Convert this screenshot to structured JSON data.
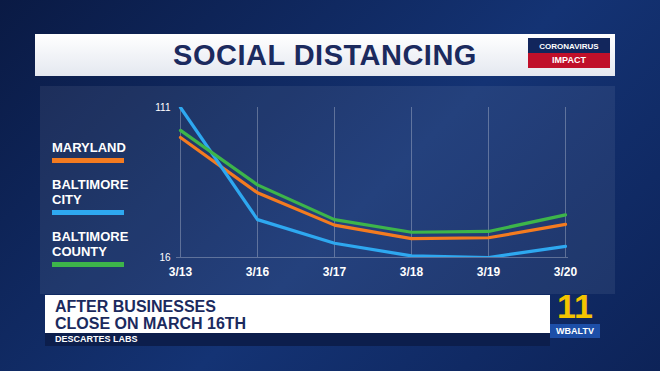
{
  "chart_data": {
    "type": "line",
    "title": "SOCIAL DISTANCING",
    "badge": [
      "CORONAVIRUS",
      "IMPACT"
    ],
    "annotations": [
      "AFTER BUSINESSES",
      "CLOSE ON MARCH 16TH"
    ],
    "source": "DESCARTES LABS",
    "logo": {
      "channel": "11",
      "station": "WBALTV"
    },
    "categories": [
      "3/13",
      "3/16",
      "3/17",
      "3/18",
      "3/19",
      "3/20"
    ],
    "series": [
      {
        "name": "MARYLAND",
        "color": "#f47b20",
        "values": [
          92,
          57,
          36.5,
          28,
          28.5,
          37
        ]
      },
      {
        "name": "BALTIMORE CITY",
        "color": "#2ea8f0",
        "values": [
          111,
          40,
          25,
          17,
          16,
          23
        ]
      },
      {
        "name": "BALTIMORE COUNTY",
        "color": "#3db54a",
        "values": [
          96.5,
          62,
          40,
          32,
          32.5,
          43
        ]
      }
    ],
    "ylim": [
      16,
      111
    ],
    "yticks": [
      16,
      111
    ],
    "grid": true,
    "legend": "left"
  }
}
